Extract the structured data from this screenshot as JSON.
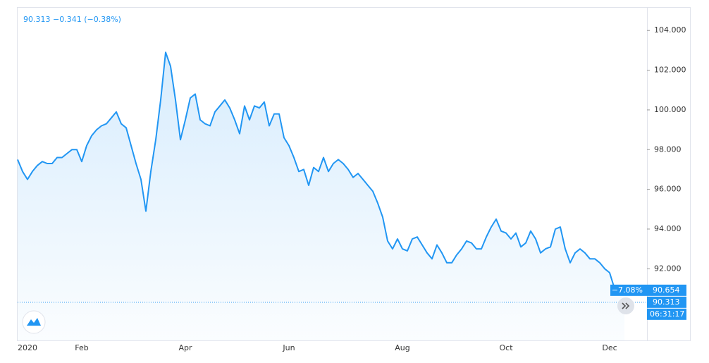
{
  "chart_data": {
    "type": "line",
    "header": "90.313 −0.341 (−0.38%)",
    "categories": [
      null,
      null,
      "2020",
      null,
      null,
      null,
      null,
      null,
      null,
      null,
      null,
      null,
      null,
      "Feb",
      null,
      null,
      null,
      null,
      null,
      null,
      null,
      null,
      null,
      null,
      null,
      null,
      null,
      null,
      null,
      null,
      null,
      null,
      null,
      null,
      "Apr",
      null,
      null,
      null,
      null,
      null,
      null,
      null,
      null,
      null,
      null,
      null,
      null,
      null,
      null,
      null,
      null,
      null,
      null,
      null,
      null,
      "Jun",
      null,
      null,
      null,
      null,
      null,
      null,
      null,
      null,
      null,
      null,
      null,
      null,
      null,
      null,
      null,
      null,
      null,
      null,
      null,
      null,
      null,
      null,
      "Aug",
      null,
      null,
      null,
      null,
      null,
      null,
      null,
      null,
      null,
      null,
      null,
      null,
      null,
      null,
      null,
      null,
      null,
      null,
      null,
      null,
      "Oct",
      null,
      null,
      null,
      null,
      null,
      null,
      null,
      null,
      null,
      null,
      null,
      null,
      null,
      null,
      null,
      null,
      null,
      null,
      null,
      null,
      "Dec",
      null,
      null,
      null
    ],
    "series": [
      {
        "color": "#2196f3",
        "values": [
          97.5,
          96.9,
          96.5,
          96.9,
          97.2,
          97.4,
          97.3,
          97.3,
          97.6,
          97.6,
          97.8,
          98.0,
          98.0,
          97.4,
          98.2,
          98.7,
          99.0,
          99.2,
          99.3,
          99.6,
          99.9,
          99.3,
          99.1,
          98.2,
          97.3,
          96.5,
          94.9,
          96.9,
          98.5,
          100.5,
          102.9,
          102.2,
          100.5,
          98.5,
          99.5,
          100.6,
          100.8,
          99.5,
          99.3,
          99.2,
          99.9,
          100.2,
          100.5,
          100.1,
          99.5,
          98.8,
          100.2,
          99.5,
          100.2,
          100.1,
          100.4,
          99.2,
          99.8,
          99.8,
          98.6,
          98.2,
          97.6,
          96.9,
          97.0,
          96.2,
          97.1,
          96.9,
          97.6,
          96.9,
          97.3,
          97.5,
          97.3,
          97.0,
          96.6,
          96.8,
          96.5,
          96.2,
          95.9,
          95.3,
          94.6,
          93.4,
          93.0,
          93.5,
          93.0,
          92.9,
          93.5,
          93.6,
          93.2,
          92.8,
          92.5,
          93.2,
          92.8,
          92.3,
          92.3,
          92.7,
          93.0,
          93.4,
          93.3,
          93.0,
          93.0,
          93.6,
          94.1,
          94.5,
          93.9,
          93.8,
          93.5,
          93.8,
          93.1,
          93.3,
          93.9,
          93.5,
          92.8,
          93.0,
          93.1,
          94.0,
          94.1,
          93.0,
          92.3,
          92.8,
          93.0,
          92.8,
          92.5,
          92.5,
          92.3,
          92.0,
          91.8,
          91.0,
          90.7,
          90.9
        ]
      }
    ],
    "ylim": [
      88.39,
      105.18
    ],
    "yticks": [
      {
        "value": 92,
        "label": "92.000"
      },
      {
        "value": 94,
        "label": "94.000"
      },
      {
        "value": 96,
        "label": "96.000"
      },
      {
        "value": 98,
        "label": "98.000"
      },
      {
        "value": 100,
        "label": "100.000"
      },
      {
        "value": 102,
        "label": "102.000"
      },
      {
        "value": 104,
        "label": "104.000"
      }
    ],
    "change_label": "−7.08%",
    "last_price_label": "90.654",
    "close_line": {
      "value": 90.313,
      "label": "90.313"
    },
    "countdown": "06:31:17"
  }
}
